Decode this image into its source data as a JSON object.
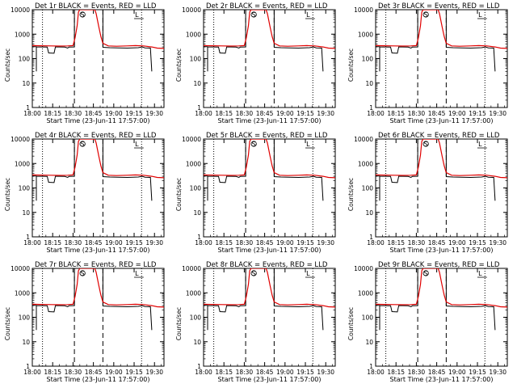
{
  "page": {
    "colors": {
      "events": "#000000",
      "lld": "#e00000",
      "axes": "#000000"
    }
  },
  "chart_data": [
    {
      "type": "line",
      "title": "Det 1r BLACK = Events, RED = LLD",
      "xlabel": "Start Time (23-Jun-11 17:57:00)",
      "ylabel": "Counts/sec",
      "xticks": [
        "18:00",
        "18:15",
        "18:30",
        "18:45",
        "19:00",
        "19:15",
        "19:30"
      ],
      "yticks": [
        "1",
        "10",
        "100",
        "1000",
        "10000"
      ],
      "ylog": true,
      "ylim": [
        1,
        10000
      ],
      "series": [
        {
          "name": "Events",
          "color": "#000000"
        },
        {
          "name": "LLD",
          "color": "#e00000"
        }
      ],
      "flag_labels": [
        "S",
        "L"
      ]
    },
    {
      "type": "line",
      "title": "Det 2r BLACK = Events, RED = LLD",
      "xlabel": "Start Time (23-Jun-11 17:57:00)",
      "ylabel": "Counts/sec",
      "xticks": [
        "18:00",
        "18:15",
        "18:30",
        "18:45",
        "19:00",
        "19:15",
        "19:30"
      ],
      "yticks": [
        "1",
        "10",
        "100",
        "1000",
        "10000"
      ],
      "ylog": true,
      "ylim": [
        1,
        10000
      ],
      "series": [
        {
          "name": "Events",
          "color": "#000000"
        },
        {
          "name": "LLD",
          "color": "#e00000"
        }
      ],
      "flag_labels": [
        "S",
        "L"
      ]
    },
    {
      "type": "line",
      "title": "Det 3r BLACK = Events, RED = LLD",
      "xlabel": "Start Time (23-Jun-11 17:57:00)",
      "ylabel": "Counts/sec",
      "xticks": [
        "18:00",
        "18:15",
        "18:30",
        "18:45",
        "19:00",
        "19:15",
        "19:30"
      ],
      "yticks": [
        "1",
        "10",
        "100",
        "1000",
        "10000"
      ],
      "ylog": true,
      "ylim": [
        1,
        10000
      ],
      "series": [
        {
          "name": "Events",
          "color": "#000000"
        },
        {
          "name": "LLD",
          "color": "#e00000"
        }
      ],
      "flag_labels": [
        "S",
        "L"
      ]
    },
    {
      "type": "line",
      "title": "Det 4r BLACK = Events, RED = LLD",
      "xlabel": "Start Time (23-Jun-11 17:57:00)",
      "ylabel": "Counts/sec",
      "xticks": [
        "18:00",
        "18:15",
        "18:30",
        "18:45",
        "19:00",
        "19:15",
        "19:30"
      ],
      "yticks": [
        "1",
        "10",
        "100",
        "1000",
        "10000"
      ],
      "ylog": true,
      "ylim": [
        1,
        10000
      ],
      "series": [
        {
          "name": "Events",
          "color": "#000000"
        },
        {
          "name": "LLD",
          "color": "#e00000"
        }
      ],
      "flag_labels": [
        "S",
        "L"
      ]
    },
    {
      "type": "line",
      "title": "Det 5r BLACK = Events, RED = LLD",
      "xlabel": "Start Time (23-Jun-11 17:57:00)",
      "ylabel": "Counts/sec",
      "xticks": [
        "18:00",
        "18:15",
        "18:30",
        "18:45",
        "19:00",
        "19:15",
        "19:30"
      ],
      "yticks": [
        "1",
        "10",
        "100",
        "1000",
        "10000"
      ],
      "ylog": true,
      "ylim": [
        1,
        10000
      ],
      "series": [
        {
          "name": "Events",
          "color": "#000000"
        },
        {
          "name": "LLD",
          "color": "#e00000"
        }
      ],
      "flag_labels": [
        "S",
        "L"
      ]
    },
    {
      "type": "line",
      "title": "Det 6r BLACK = Events, RED = LLD",
      "xlabel": "Start Time (23-Jun-11 17:57:00)",
      "ylabel": "Counts/sec",
      "xticks": [
        "18:00",
        "18:15",
        "18:30",
        "18:45",
        "19:00",
        "19:15",
        "19:30"
      ],
      "yticks": [
        "1",
        "10",
        "100",
        "1000",
        "10000"
      ],
      "ylog": true,
      "ylim": [
        1,
        10000
      ],
      "series": [
        {
          "name": "Events",
          "color": "#000000"
        },
        {
          "name": "LLD",
          "color": "#e00000"
        }
      ],
      "flag_labels": [
        "S",
        "L"
      ]
    },
    {
      "type": "line",
      "title": "Det 7r BLACK = Events, RED = LLD",
      "xlabel": "Start Time (23-Jun-11 17:57:00)",
      "ylabel": "Counts/sec",
      "xticks": [
        "18:00",
        "18:15",
        "18:30",
        "18:45",
        "19:00",
        "19:15",
        "19:30"
      ],
      "yticks": [
        "1",
        "10",
        "100",
        "1000",
        "10000"
      ],
      "ylog": true,
      "ylim": [
        1,
        10000
      ],
      "series": [
        {
          "name": "Events",
          "color": "#000000"
        },
        {
          "name": "LLD",
          "color": "#e00000"
        }
      ],
      "flag_labels": [
        "S",
        "L"
      ]
    },
    {
      "type": "line",
      "title": "Det 8r BLACK = Events, RED = LLD",
      "xlabel": "Start Time (23-Jun-11 17:57:00)",
      "ylabel": "Counts/sec",
      "xticks": [
        "18:00",
        "18:15",
        "18:30",
        "18:45",
        "19:00",
        "19:15",
        "19:30"
      ],
      "yticks": [
        "1",
        "10",
        "100",
        "1000",
        "10000"
      ],
      "ylog": true,
      "ylim": [
        1,
        10000
      ],
      "series": [
        {
          "name": "Events",
          "color": "#000000"
        },
        {
          "name": "LLD",
          "color": "#e00000"
        }
      ],
      "flag_labels": [
        "S",
        "L"
      ]
    },
    {
      "type": "line",
      "title": "Det 9r BLACK = Events, RED = LLD",
      "xlabel": "Start Time (23-Jun-11 17:57:00)",
      "ylabel": "Counts/sec",
      "xticks": [
        "18:00",
        "18:15",
        "18:30",
        "18:45",
        "19:00",
        "19:15",
        "19:30"
      ],
      "yticks": [
        "1",
        "10",
        "100",
        "1000",
        "10000"
      ],
      "ylog": true,
      "ylim": [
        1,
        10000
      ],
      "series": [
        {
          "name": "Events",
          "color": "#000000"
        },
        {
          "name": "LLD",
          "color": "#e00000"
        }
      ],
      "flag_labels": [
        "S",
        "L"
      ]
    }
  ]
}
